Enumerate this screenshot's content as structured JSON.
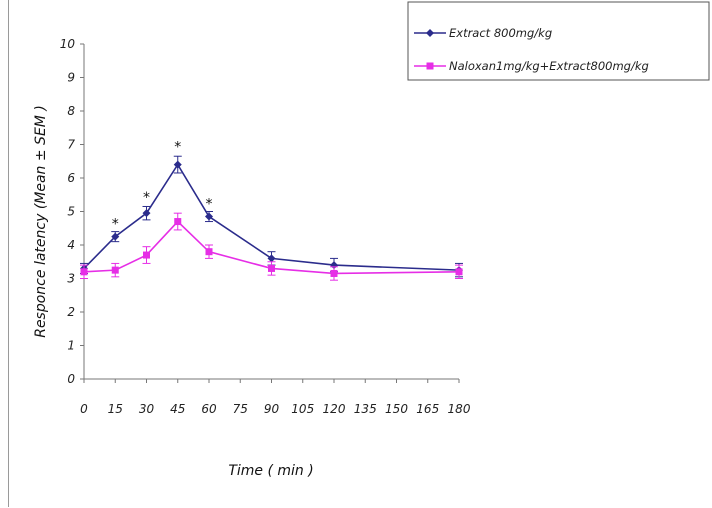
{
  "chart_data": {
    "type": "line",
    "title": "",
    "xlabel": "Time ( min )",
    "ylabel": "Responce latency (Mean ± SEM )",
    "x": [
      0,
      15,
      30,
      45,
      60,
      75,
      90,
      105,
      120,
      135,
      150,
      165,
      180
    ],
    "x_tick_labels": [
      "0",
      "15",
      "30",
      "45",
      "60",
      "75",
      "90",
      "105",
      "120",
      "135",
      "150",
      "165",
      "180"
    ],
    "y_tick_labels": [
      "0",
      "1",
      "2",
      "3",
      "4",
      "5",
      "6",
      "7",
      "8",
      "9",
      "10"
    ],
    "ylim": [
      0,
      10
    ],
    "grid": false,
    "legend_position": "top-right",
    "series": [
      {
        "name": "Extract 800mg/kg",
        "color": "#2b2c8c",
        "marker": "diamond",
        "x": [
          0,
          15,
          30,
          45,
          60,
          90,
          120,
          180
        ],
        "y": [
          3.3,
          4.25,
          4.95,
          6.4,
          4.85,
          3.6,
          3.4,
          3.25
        ],
        "error": [
          0.15,
          0.15,
          0.2,
          0.25,
          0.15,
          0.2,
          0.2,
          0.2
        ]
      },
      {
        "name": "Naloxan1mg/kg+Extract800mg/kg",
        "color": "#e62ee6",
        "marker": "square",
        "x": [
          0,
          15,
          30,
          45,
          60,
          90,
          120,
          180
        ],
        "y": [
          3.2,
          3.25,
          3.7,
          4.7,
          3.8,
          3.3,
          3.15,
          3.2
        ],
        "error": [
          0.2,
          0.2,
          0.25,
          0.25,
          0.2,
          0.2,
          0.2,
          0.2
        ]
      }
    ],
    "annotations": [
      {
        "text": "*",
        "x": 15,
        "y": 4.7
      },
      {
        "text": "*",
        "x": 30,
        "y": 5.5
      },
      {
        "text": "*",
        "x": 45,
        "y": 7.0
      },
      {
        "text": "*",
        "x": 60,
        "y": 5.3
      }
    ]
  }
}
